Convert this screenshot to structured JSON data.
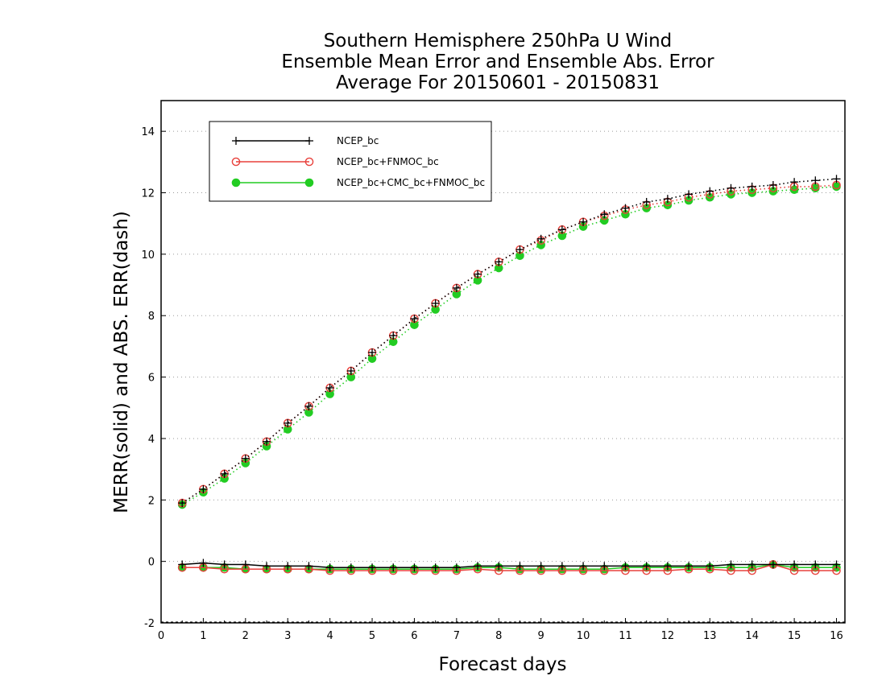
{
  "chart_data": {
    "type": "line",
    "title_lines": [
      "Southern Hemisphere 250hPa U Wind",
      "Ensemble Mean Error and Ensemble Abs. Error",
      "Average For 20150601 - 20150831"
    ],
    "xlabel": "Forecast days",
    "ylabel": "MERR(solid) and ABS. ERR(dash)",
    "xlim": [
      0,
      16.2
    ],
    "ylim": [
      -2,
      15
    ],
    "xticks": [
      0,
      1,
      2,
      3,
      4,
      5,
      6,
      7,
      8,
      9,
      10,
      11,
      12,
      13,
      14,
      15,
      16
    ],
    "yticks": [
      -2,
      0,
      2,
      4,
      6,
      8,
      10,
      12,
      14
    ],
    "grid": "horizontal dotted",
    "legend_position": "top-left",
    "x": [
      0.5,
      1,
      1.5,
      2,
      2.5,
      3,
      3.5,
      4,
      4.5,
      5,
      5.5,
      6,
      6.5,
      7,
      7.5,
      8,
      8.5,
      9,
      9.5,
      10,
      10.5,
      11,
      11.5,
      12,
      12.5,
      13,
      13.5,
      14,
      14.5,
      15,
      15.5,
      16
    ],
    "series": [
      {
        "name": "NCEP_bc",
        "color": "#000000",
        "marker": "plus",
        "abs_err": [
          1.9,
          2.35,
          2.85,
          3.35,
          3.9,
          4.5,
          5.05,
          5.65,
          6.2,
          6.8,
          7.35,
          7.9,
          8.4,
          8.9,
          9.35,
          9.75,
          10.15,
          10.5,
          10.8,
          11.05,
          11.3,
          11.5,
          11.7,
          11.8,
          11.95,
          12.05,
          12.15,
          12.2,
          12.25,
          12.35,
          12.4,
          12.45
        ],
        "mean_err": [
          -0.1,
          -0.05,
          -0.1,
          -0.1,
          -0.15,
          -0.15,
          -0.15,
          -0.2,
          -0.2,
          -0.2,
          -0.2,
          -0.2,
          -0.2,
          -0.2,
          -0.15,
          -0.15,
          -0.15,
          -0.15,
          -0.15,
          -0.15,
          -0.15,
          -0.15,
          -0.15,
          -0.15,
          -0.15,
          -0.15,
          -0.1,
          -0.1,
          -0.1,
          -0.1,
          -0.1,
          -0.1
        ]
      },
      {
        "name": "NCEP_bc+FNMOC_bc",
        "color": "#e8413c",
        "marker": "open-circle",
        "abs_err": [
          1.9,
          2.35,
          2.85,
          3.35,
          3.9,
          4.5,
          5.05,
          5.65,
          6.2,
          6.8,
          7.35,
          7.9,
          8.4,
          8.9,
          9.35,
          9.75,
          10.15,
          10.45,
          10.8,
          11.05,
          11.25,
          11.45,
          11.6,
          11.7,
          11.85,
          11.95,
          12.05,
          12.1,
          12.15,
          12.2,
          12.2,
          12.25
        ],
        "mean_err": [
          -0.2,
          -0.2,
          -0.25,
          -0.25,
          -0.25,
          -0.25,
          -0.25,
          -0.3,
          -0.3,
          -0.3,
          -0.3,
          -0.3,
          -0.3,
          -0.3,
          -0.25,
          -0.3,
          -0.3,
          -0.3,
          -0.3,
          -0.3,
          -0.3,
          -0.3,
          -0.3,
          -0.3,
          -0.25,
          -0.25,
          -0.3,
          -0.3,
          -0.1,
          -0.3,
          -0.3,
          -0.3
        ]
      },
      {
        "name": "NCEP_bc+CMC_bc+FNMOC_bc",
        "color": "#22cc22",
        "marker": "filled-circle",
        "abs_err": [
          1.85,
          2.25,
          2.7,
          3.2,
          3.75,
          4.3,
          4.85,
          5.45,
          6.0,
          6.6,
          7.15,
          7.7,
          8.2,
          8.7,
          9.15,
          9.55,
          9.95,
          10.3,
          10.6,
          10.9,
          11.1,
          11.3,
          11.5,
          11.6,
          11.75,
          11.85,
          11.95,
          12.0,
          12.05,
          12.1,
          12.15,
          12.2
        ],
        "mean_err": [
          -0.2,
          -0.2,
          -0.2,
          -0.25,
          -0.25,
          -0.25,
          -0.25,
          -0.25,
          -0.25,
          -0.25,
          -0.25,
          -0.25,
          -0.25,
          -0.25,
          -0.2,
          -0.2,
          -0.25,
          -0.25,
          -0.25,
          -0.25,
          -0.25,
          -0.2,
          -0.2,
          -0.2,
          -0.2,
          -0.2,
          -0.2,
          -0.2,
          -0.1,
          -0.2,
          -0.2,
          -0.2
        ]
      }
    ]
  }
}
